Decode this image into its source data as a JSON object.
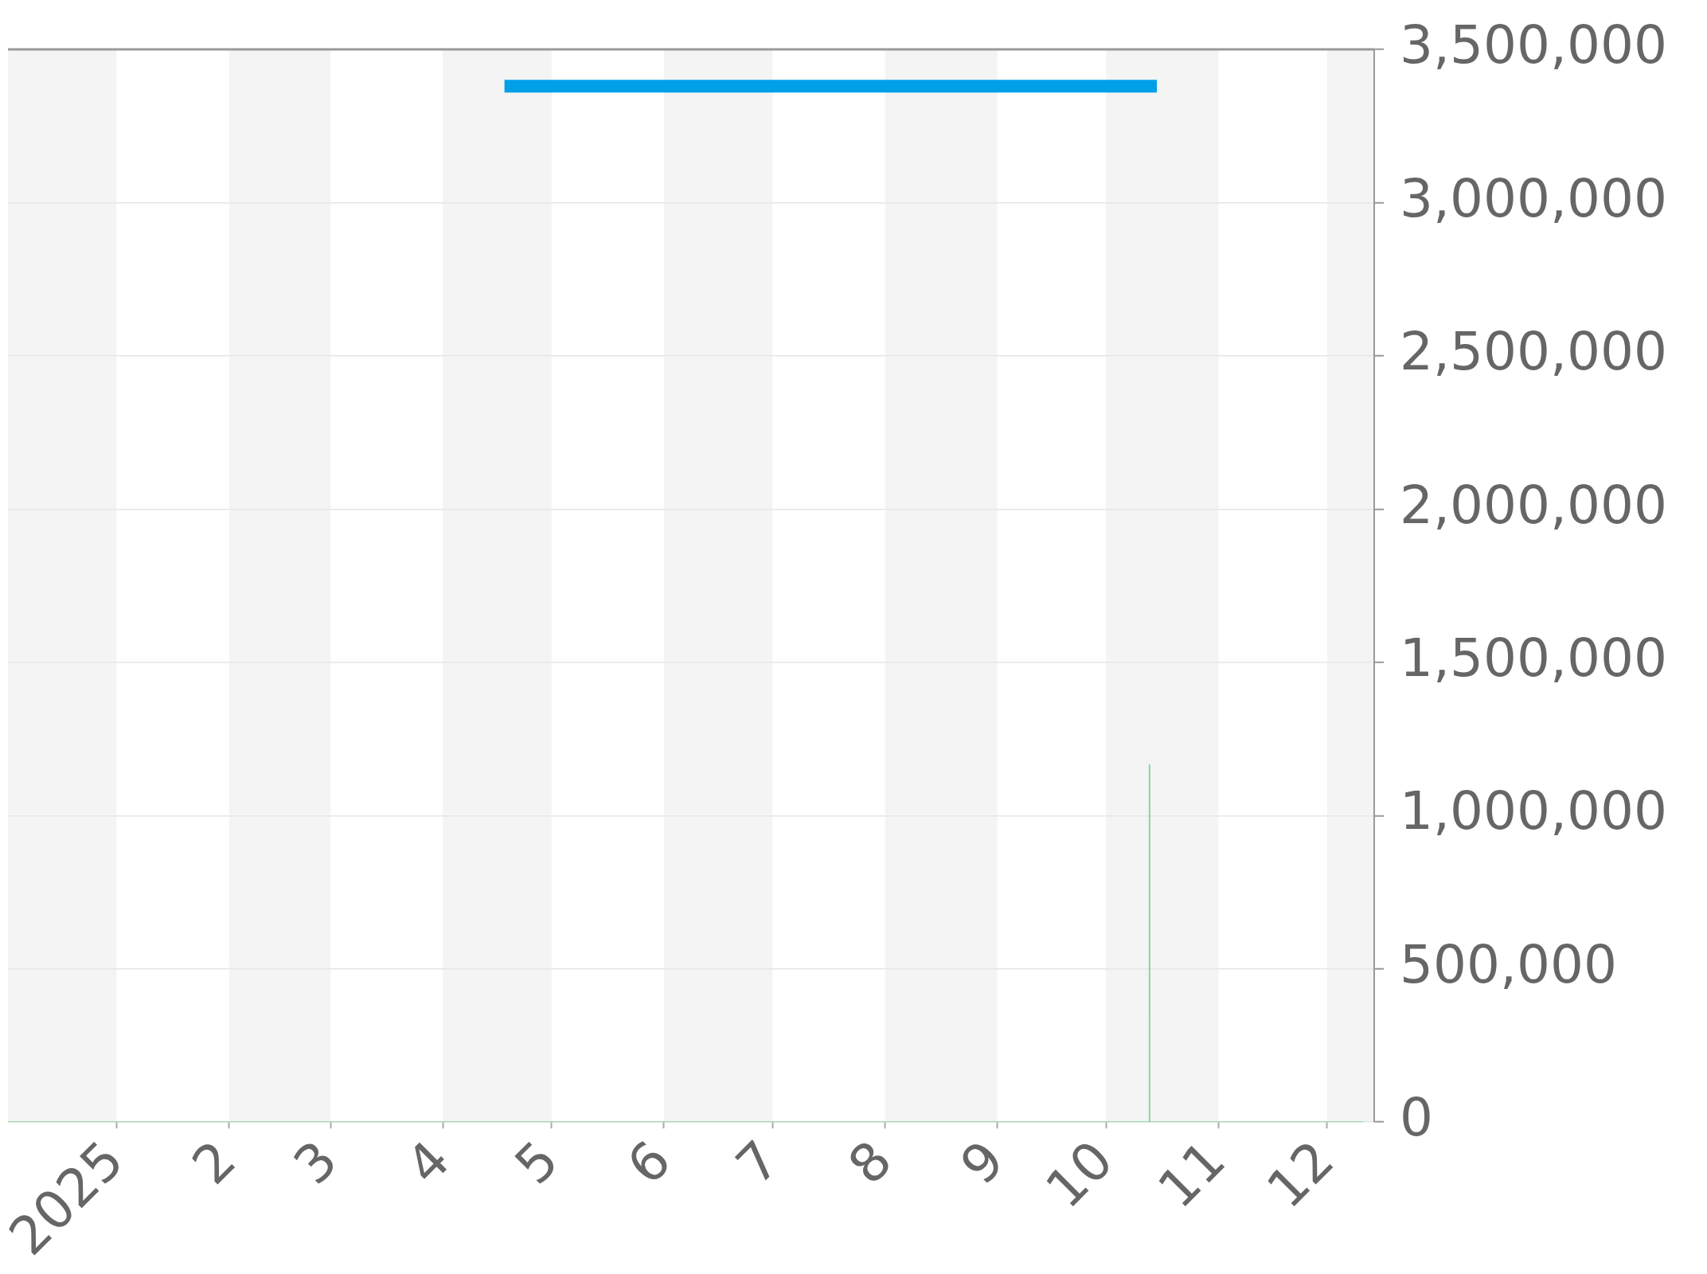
{
  "chart_data": {
    "type": "line",
    "series": [
      {
        "color": "#00a0e9",
        "x": [
          "2025-04-18",
          "2025-10-15"
        ],
        "values": [
          3380000,
          3380000
        ]
      },
      {
        "color": "#8fd49e",
        "x": [
          "2024-12-02",
          "2025-10-13",
          "2025-10-13",
          "2025-10-13",
          "2025-12-11"
        ],
        "values": [
          0,
          0,
          1165000,
          0,
          0
        ]
      }
    ],
    "xlim": [
      "2024-12-02",
      "2025-12-14"
    ],
    "xticks": [
      {
        "value": "2025-01-01",
        "label": "2025"
      },
      {
        "value": "2025-02-01",
        "label": "2"
      },
      {
        "value": "2025-03-01",
        "label": "3"
      },
      {
        "value": "2025-04-01",
        "label": "4"
      },
      {
        "value": "2025-05-01",
        "label": "5"
      },
      {
        "value": "2025-06-01",
        "label": "6"
      },
      {
        "value": "2025-07-01",
        "label": "7"
      },
      {
        "value": "2025-08-01",
        "label": "8"
      },
      {
        "value": "2025-09-01",
        "label": "9"
      },
      {
        "value": "2025-10-01",
        "label": "10"
      },
      {
        "value": "2025-11-01",
        "label": "11"
      },
      {
        "value": "2025-12-01",
        "label": "12"
      }
    ],
    "ylim": [
      0,
      3500000
    ],
    "yticks": [
      0,
      {
        "value": 500000,
        "label": "500,000"
      },
      {
        "value": 1000000,
        "label": "1,000,000"
      },
      {
        "value": 1500000,
        "label": "1,500,000"
      },
      {
        "value": 2000000,
        "label": "2,000,000"
      },
      {
        "value": 2500000,
        "label": "2,500,000"
      },
      {
        "value": 3000000,
        "label": "3,000,000"
      },
      {
        "value": 3500000,
        "label": "3,500,000"
      }
    ],
    "bands": [
      {
        "axis": "x",
        "from": "2024-12-02",
        "to": "2025-01-01",
        "color": "#f4f4f4"
      },
      {
        "axis": "x",
        "from": "2025-02-01",
        "to": "2025-03-01",
        "color": "#f4f4f4"
      },
      {
        "axis": "x",
        "from": "2025-04-01",
        "to": "2025-05-01",
        "color": "#f4f4f4"
      },
      {
        "axis": "x",
        "from": "2025-06-01",
        "to": "2025-07-01",
        "color": "#f4f4f4"
      },
      {
        "axis": "x",
        "from": "2025-08-01",
        "to": "2025-09-01",
        "color": "#f4f4f4"
      },
      {
        "axis": "x",
        "from": "2025-10-01",
        "to": "2025-11-01",
        "color": "#f4f4f4"
      },
      {
        "axis": "x",
        "from": "2025-12-01",
        "to": "2025-12-14",
        "color": "#f4f4f4"
      }
    ],
    "grid": "y",
    "legend": false,
    "marker": "none"
  }
}
